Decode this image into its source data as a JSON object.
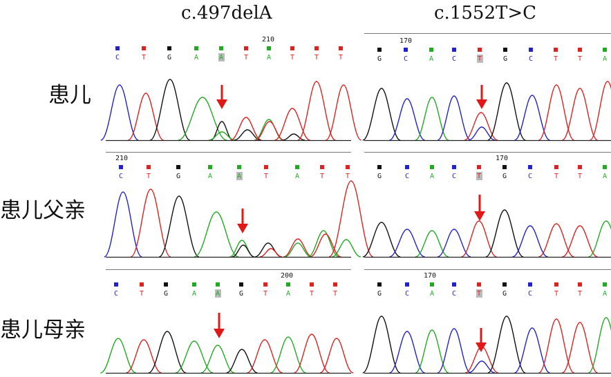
{
  "titles": {
    "left": "c.497delA",
    "right": "c.1552T>C"
  },
  "row_labels": [
    "患儿",
    "患儿父亲",
    "患儿母亲"
  ],
  "colors": {
    "A": "#22aa22",
    "C": "#2222cc",
    "G": "#111111",
    "T": "#dd2222",
    "arrow": "#e01818",
    "highlight": "#bbbbbb"
  },
  "panels": [
    {
      "id": "patient-left",
      "position_number": "210",
      "bases": [
        "C",
        "T",
        "G",
        "A",
        "A",
        "T",
        "A",
        "T",
        "T",
        "T"
      ],
      "highlight_index": 4
    },
    {
      "id": "patient-right",
      "position_number": "170",
      "bases": [
        "G",
        "C",
        "A",
        "C",
        "T",
        "G",
        "C",
        "T",
        "T",
        "A"
      ],
      "highlight_index": 4
    },
    {
      "id": "father-left",
      "position_number": "210",
      "bases": [
        "C",
        "T",
        "G",
        "A",
        "A",
        "T",
        "A",
        "T",
        "T"
      ],
      "highlight_index": 4
    },
    {
      "id": "father-right",
      "position_number": "170",
      "bases": [
        "G",
        "C",
        "A",
        "C",
        "T",
        "G",
        "C",
        "T",
        "T",
        "A"
      ],
      "highlight_index": 4
    },
    {
      "id": "mother-left",
      "position_number": "200",
      "bases": [
        "C",
        "T",
        "G",
        "A",
        "A",
        "G",
        "T",
        "A",
        "T",
        "T"
      ],
      "highlight_index": 4
    },
    {
      "id": "mother-right",
      "position_number": "170",
      "bases": [
        "G",
        "C",
        "A",
        "C",
        "T",
        "G",
        "C",
        "T",
        "T",
        "A"
      ],
      "highlight_index": 4
    }
  ]
}
